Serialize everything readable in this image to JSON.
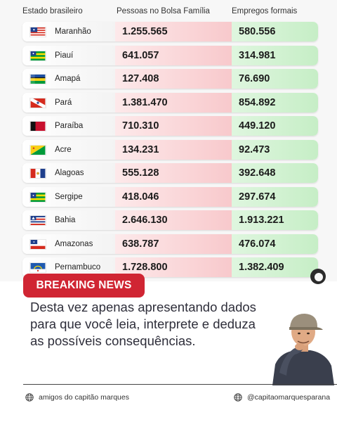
{
  "headers": {
    "state": "Estado brasileiro",
    "bolsa": "Pessoas no Bolsa Família",
    "empregos": "Empregos formais"
  },
  "rows": [
    {
      "state": "Maranhão",
      "bolsa": "1.255.565",
      "empregos": "580.556",
      "flag": "maranhao-flag-icon"
    },
    {
      "state": "Piauí",
      "bolsa": "641.057",
      "empregos": "314.981",
      "flag": "piaui-flag-icon"
    },
    {
      "state": "Amapá",
      "bolsa": "127.408",
      "empregos": "76.690",
      "flag": "amapa-flag-icon"
    },
    {
      "state": "Pará",
      "bolsa": "1.381.470",
      "empregos": "854.892",
      "flag": "para-flag-icon"
    },
    {
      "state": "Paraíba",
      "bolsa": "710.310",
      "empregos": "449.120",
      "flag": "paraiba-flag-icon"
    },
    {
      "state": "Acre",
      "bolsa": "134.231",
      "empregos": "92.473",
      "flag": "acre-flag-icon"
    },
    {
      "state": "Alagoas",
      "bolsa": "555.128",
      "empregos": "392.648",
      "flag": "alagoas-flag-icon"
    },
    {
      "state": "Sergipe",
      "bolsa": "418.046",
      "empregos": "297.674",
      "flag": "sergipe-flag-icon"
    },
    {
      "state": "Bahia",
      "bolsa": "2.646.130",
      "empregos": "1.913.221",
      "flag": "bahia-flag-icon"
    },
    {
      "state": "Amazonas",
      "bolsa": "638.787",
      "empregos": "476.074",
      "flag": "amazonas-flag-icon"
    },
    {
      "state": "Pernambuco",
      "bolsa": "1.728.800",
      "empregos": "1.382.409",
      "flag": "pernambuco-flag-icon"
    }
  ],
  "banner": "BREAKING NEWS",
  "body_text": "Desta vez apenas apresentando dados para que você leia, interprete e deduza as possíveis consequências.",
  "footer": {
    "left": "amigos do capitão marques",
    "right": "@capitaomarquesparana",
    "icon": "globe-icon"
  },
  "colors": {
    "banner": "#d02533",
    "bolsa_column": "#f8c9cc",
    "empregos_column": "#c6eec6"
  }
}
